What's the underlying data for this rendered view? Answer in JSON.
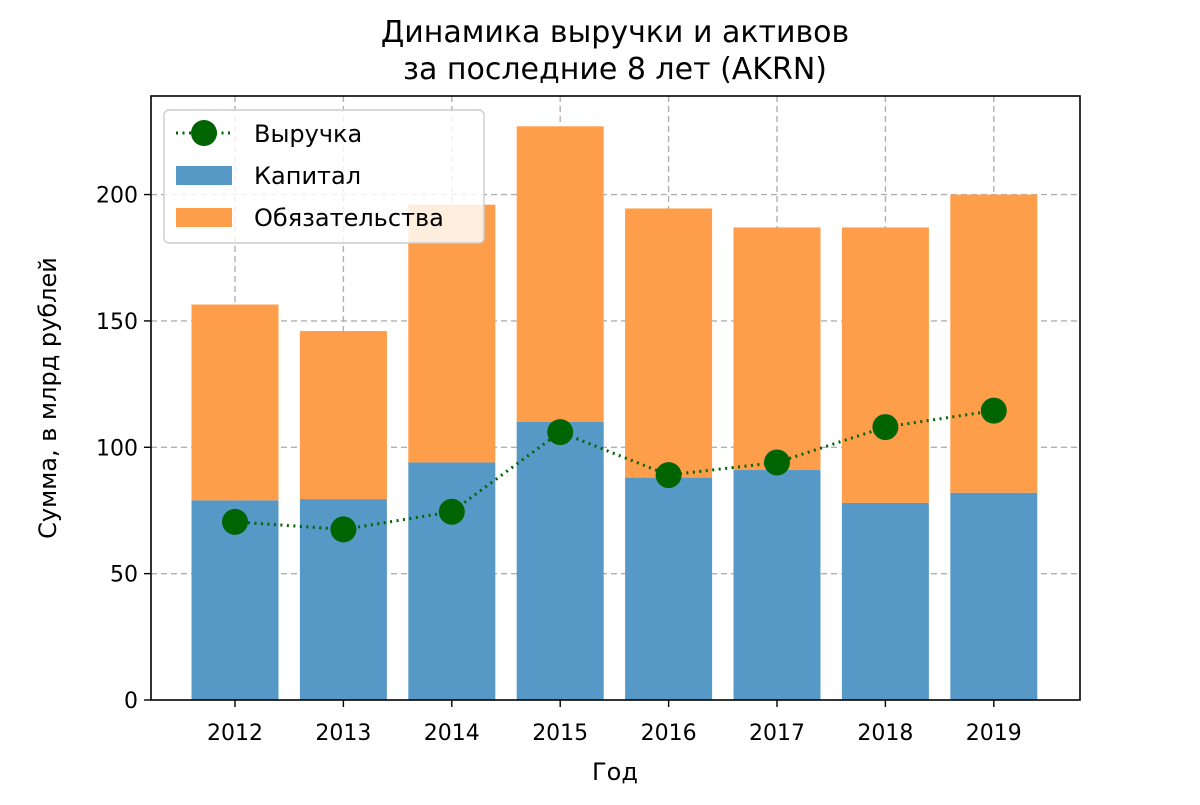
{
  "chart_data": {
    "type": "bar",
    "title_line1": "Динамика выручки и активов",
    "title_line2": "за последние 8 лет (AKRN)",
    "xlabel": "Год",
    "ylabel": "Сумма, в млрд рублей",
    "categories": [
      "2012",
      "2013",
      "2014",
      "2015",
      "2016",
      "2017",
      "2018",
      "2019"
    ],
    "ylim": [
      0,
      239
    ],
    "yticks": [
      0,
      50,
      100,
      150,
      200
    ],
    "grid": true,
    "legend_position": "top-left",
    "series": [
      {
        "name": "Капитал",
        "kind": "bar-stacked",
        "color": "#5799c6",
        "values": [
          79,
          79.5,
          94,
          110,
          88,
          91,
          78,
          82
        ]
      },
      {
        "name": "Обязательства",
        "kind": "bar-stacked",
        "color": "#ff9e4a",
        "values": [
          77.5,
          66.5,
          102,
          117,
          106.5,
          96,
          109,
          118
        ]
      },
      {
        "name": "Выручка",
        "kind": "line-dotted-markers",
        "color": "#006400",
        "values": [
          70.5,
          67.5,
          74.5,
          106,
          89,
          94,
          108,
          114.5
        ]
      }
    ]
  }
}
